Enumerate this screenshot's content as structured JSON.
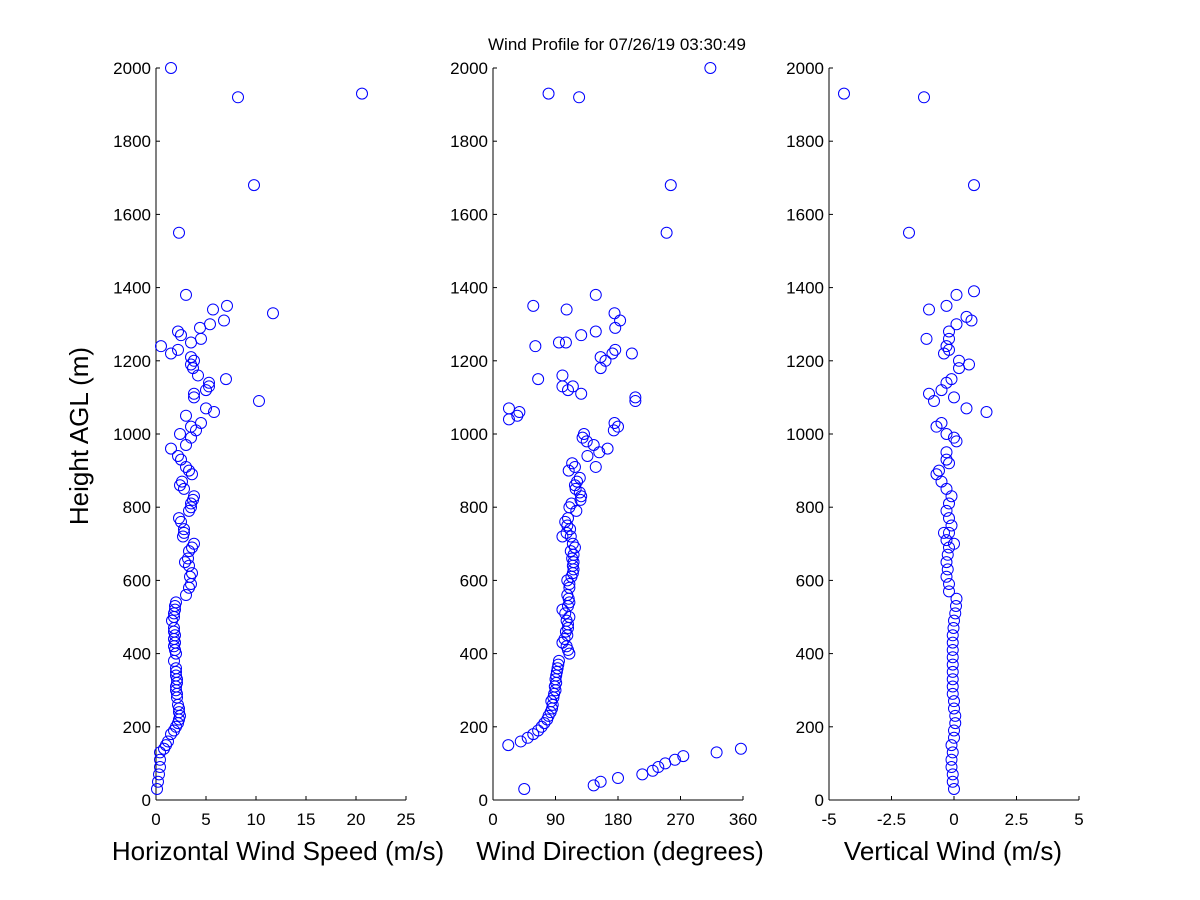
{
  "title": "Wind Profile for  07/26/19 03:30:49",
  "ylabel": "Height AGL (m)",
  "marker_color": "#0000ff",
  "chart_data": [
    {
      "type": "scatter",
      "xlabel": "Horizontal Wind Speed (m/s)",
      "xlim": [
        0,
        25
      ],
      "ylim": [
        0,
        2000
      ],
      "xticks": [
        0,
        5,
        10,
        15,
        20,
        25
      ],
      "xtick_labels": [
        "0",
        "5",
        "10",
        "15",
        "20",
        "25"
      ],
      "yticks": [
        0,
        200,
        400,
        600,
        800,
        1000,
        1200,
        1400,
        1600,
        1800,
        2000
      ],
      "points": [
        [
          0.1,
          30
        ],
        [
          0.2,
          50
        ],
        [
          0.3,
          70
        ],
        [
          0.4,
          90
        ],
        [
          0.4,
          110
        ],
        [
          0.4,
          130
        ],
        [
          0.8,
          140
        ],
        [
          1.0,
          150
        ],
        [
          1.2,
          160
        ],
        [
          1.5,
          180
        ],
        [
          1.8,
          190
        ],
        [
          2.0,
          200
        ],
        [
          2.2,
          210
        ],
        [
          2.3,
          220
        ],
        [
          2.4,
          230
        ],
        [
          2.3,
          240
        ],
        [
          2.3,
          250
        ],
        [
          2.2,
          260
        ],
        [
          2.1,
          280
        ],
        [
          2.1,
          290
        ],
        [
          2.0,
          300
        ],
        [
          2.0,
          310
        ],
        [
          2.1,
          320
        ],
        [
          2.1,
          330
        ],
        [
          2.0,
          340
        ],
        [
          2.0,
          350
        ],
        [
          2.0,
          360
        ],
        [
          1.8,
          380
        ],
        [
          2.0,
          400
        ],
        [
          1.9,
          410
        ],
        [
          1.8,
          420
        ],
        [
          1.9,
          430
        ],
        [
          1.8,
          440
        ],
        [
          1.9,
          450
        ],
        [
          1.8,
          460
        ],
        [
          1.8,
          470
        ],
        [
          1.6,
          490
        ],
        [
          1.8,
          500
        ],
        [
          1.8,
          510
        ],
        [
          1.9,
          520
        ],
        [
          1.9,
          530
        ],
        [
          2.0,
          540
        ],
        [
          3.0,
          560
        ],
        [
          3.3,
          580
        ],
        [
          3.5,
          590
        ],
        [
          3.4,
          610
        ],
        [
          3.6,
          620
        ],
        [
          3.3,
          640
        ],
        [
          2.9,
          650
        ],
        [
          3.2,
          660
        ],
        [
          3.3,
          680
        ],
        [
          3.6,
          690
        ],
        [
          3.8,
          700
        ],
        [
          2.7,
          720
        ],
        [
          2.8,
          730
        ],
        [
          2.8,
          740
        ],
        [
          2.5,
          760
        ],
        [
          2.3,
          770
        ],
        [
          3.3,
          790
        ],
        [
          3.5,
          800
        ],
        [
          3.5,
          810
        ],
        [
          3.7,
          820
        ],
        [
          3.8,
          830
        ],
        [
          2.8,
          850
        ],
        [
          2.4,
          860
        ],
        [
          2.6,
          870
        ],
        [
          3.6,
          890
        ],
        [
          3.3,
          900
        ],
        [
          3.0,
          910
        ],
        [
          2.5,
          930
        ],
        [
          2.2,
          940
        ],
        [
          1.5,
          960
        ],
        [
          3.0,
          970
        ],
        [
          3.5,
          990
        ],
        [
          2.4,
          1000
        ],
        [
          4.0,
          1010
        ],
        [
          3.5,
          1020
        ],
        [
          4.5,
          1030
        ],
        [
          3.0,
          1050
        ],
        [
          5.8,
          1060
        ],
        [
          5.0,
          1070
        ],
        [
          10.3,
          1090
        ],
        [
          3.8,
          1100
        ],
        [
          3.8,
          1110
        ],
        [
          5.0,
          1120
        ],
        [
          5.3,
          1130
        ],
        [
          5.3,
          1140
        ],
        [
          7.0,
          1150
        ],
        [
          4.2,
          1160
        ],
        [
          3.7,
          1180
        ],
        [
          3.5,
          1190
        ],
        [
          3.8,
          1200
        ],
        [
          3.5,
          1210
        ],
        [
          1.5,
          1220
        ],
        [
          2.2,
          1230
        ],
        [
          0.5,
          1240
        ],
        [
          3.5,
          1250
        ],
        [
          4.5,
          1260
        ],
        [
          2.5,
          1270
        ],
        [
          2.2,
          1280
        ],
        [
          4.4,
          1290
        ],
        [
          5.4,
          1300
        ],
        [
          6.8,
          1310
        ],
        [
          11.7,
          1330
        ],
        [
          5.7,
          1340
        ],
        [
          7.1,
          1350
        ],
        [
          3.0,
          1380
        ],
        [
          2.3,
          1550
        ],
        [
          9.8,
          1680
        ],
        [
          8.2,
          1920
        ],
        [
          20.6,
          1930
        ],
        [
          1.5,
          2000
        ]
      ]
    },
    {
      "type": "scatter",
      "xlabel": "Wind Direction (degrees)",
      "xlim": [
        0,
        360
      ],
      "ylim": [
        0,
        2000
      ],
      "xticks": [
        0,
        90,
        180,
        270,
        360
      ],
      "xtick_labels": [
        "0",
        "90",
        "180",
        "270",
        "360"
      ],
      "yticks": [
        0,
        200,
        400,
        600,
        800,
        1000,
        1200,
        1400,
        1600,
        1800,
        2000
      ],
      "points": [
        [
          45,
          30
        ],
        [
          145,
          40
        ],
        [
          155,
          50
        ],
        [
          180,
          60
        ],
        [
          215,
          70
        ],
        [
          230,
          80
        ],
        [
          238,
          90
        ],
        [
          248,
          100
        ],
        [
          262,
          110
        ],
        [
          274,
          120
        ],
        [
          322,
          130
        ],
        [
          357,
          140
        ],
        [
          22,
          150
        ],
        [
          40,
          160
        ],
        [
          50,
          170
        ],
        [
          58,
          180
        ],
        [
          65,
          190
        ],
        [
          70,
          200
        ],
        [
          74,
          210
        ],
        [
          78,
          220
        ],
        [
          80,
          230
        ],
        [
          83,
          240
        ],
        [
          85,
          250
        ],
        [
          86,
          260
        ],
        [
          84,
          270
        ],
        [
          87,
          280
        ],
        [
          88,
          290
        ],
        [
          90,
          300
        ],
        [
          89,
          310
        ],
        [
          91,
          320
        ],
        [
          90,
          330
        ],
        [
          91,
          340
        ],
        [
          92,
          350
        ],
        [
          93,
          360
        ],
        [
          94,
          370
        ],
        [
          95,
          380
        ],
        [
          110,
          400
        ],
        [
          108,
          410
        ],
        [
          106,
          420
        ],
        [
          100,
          430
        ],
        [
          103,
          440
        ],
        [
          107,
          450
        ],
        [
          105,
          460
        ],
        [
          108,
          470
        ],
        [
          108,
          480
        ],
        [
          106,
          490
        ],
        [
          110,
          500
        ],
        [
          104,
          510
        ],
        [
          100,
          520
        ],
        [
          108,
          530
        ],
        [
          110,
          540
        ],
        [
          109,
          550
        ],
        [
          107,
          560
        ],
        [
          110,
          580
        ],
        [
          110,
          590
        ],
        [
          107,
          600
        ],
        [
          113,
          610
        ],
        [
          115,
          620
        ],
        [
          116,
          630
        ],
        [
          115,
          640
        ],
        [
          116,
          650
        ],
        [
          114,
          660
        ],
        [
          116,
          670
        ],
        [
          112,
          680
        ],
        [
          118,
          690
        ],
        [
          115,
          700
        ],
        [
          112,
          720
        ],
        [
          100,
          720
        ],
        [
          106,
          730
        ],
        [
          111,
          740
        ],
        [
          107,
          750
        ],
        [
          104,
          760
        ],
        [
          108,
          770
        ],
        [
          120,
          790
        ],
        [
          110,
          800
        ],
        [
          113,
          810
        ],
        [
          126,
          820
        ],
        [
          127,
          830
        ],
        [
          125,
          840
        ],
        [
          119,
          850
        ],
        [
          118,
          860
        ],
        [
          121,
          870
        ],
        [
          125,
          880
        ],
        [
          109,
          900
        ],
        [
          118,
          910
        ],
        [
          148,
          910
        ],
        [
          114,
          920
        ],
        [
          136,
          940
        ],
        [
          153,
          950
        ],
        [
          165,
          960
        ],
        [
          145,
          970
        ],
        [
          135,
          980
        ],
        [
          129,
          990
        ],
        [
          131,
          1000
        ],
        [
          174,
          1010
        ],
        [
          180,
          1020
        ],
        [
          175,
          1030
        ],
        [
          23,
          1040
        ],
        [
          35,
          1050
        ],
        [
          38,
          1060
        ],
        [
          23,
          1070
        ],
        [
          205,
          1090
        ],
        [
          205,
          1100
        ],
        [
          127,
          1110
        ],
        [
          108,
          1120
        ],
        [
          115,
          1130
        ],
        [
          100,
          1130
        ],
        [
          65,
          1150
        ],
        [
          100,
          1160
        ],
        [
          155,
          1180
        ],
        [
          162,
          1200
        ],
        [
          155,
          1210
        ],
        [
          172,
          1220
        ],
        [
          200,
          1220
        ],
        [
          176,
          1230
        ],
        [
          61,
          1240
        ],
        [
          95,
          1250
        ],
        [
          105,
          1250
        ],
        [
          127,
          1270
        ],
        [
          148,
          1280
        ],
        [
          176,
          1290
        ],
        [
          183,
          1310
        ],
        [
          175,
          1330
        ],
        [
          58,
          1350
        ],
        [
          106,
          1340
        ],
        [
          148,
          1380
        ],
        [
          250,
          1550
        ],
        [
          256,
          1680
        ],
        [
          124,
          1920
        ],
        [
          80,
          1930
        ],
        [
          313,
          2000
        ]
      ]
    },
    {
      "type": "scatter",
      "xlabel": "Vertical Wind (m/s)",
      "xlim": [
        -5,
        5
      ],
      "ylim": [
        0,
        2000
      ],
      "xticks": [
        -5,
        -2.5,
        0,
        2.5,
        5
      ],
      "xtick_labels": [
        "-5",
        "-2.5",
        "0",
        "2.5",
        "5"
      ],
      "yticks": [
        0,
        200,
        400,
        600,
        800,
        1000,
        1200,
        1400,
        1600,
        1800,
        2000
      ],
      "points": [
        [
          0.0,
          30
        ],
        [
          -0.05,
          50
        ],
        [
          -0.05,
          70
        ],
        [
          -0.1,
          90
        ],
        [
          -0.1,
          110
        ],
        [
          -0.05,
          130
        ],
        [
          -0.1,
          150
        ],
        [
          0.0,
          170
        ],
        [
          0.0,
          190
        ],
        [
          0.05,
          210
        ],
        [
          0.05,
          230
        ],
        [
          0.0,
          250
        ],
        [
          0.0,
          270
        ],
        [
          -0.05,
          290
        ],
        [
          -0.05,
          310
        ],
        [
          -0.05,
          330
        ],
        [
          -0.05,
          350
        ],
        [
          -0.05,
          370
        ],
        [
          -0.05,
          390
        ],
        [
          -0.05,
          410
        ],
        [
          -0.05,
          430
        ],
        [
          -0.05,
          450
        ],
        [
          -0.02,
          470
        ],
        [
          0.0,
          490
        ],
        [
          0.05,
          510
        ],
        [
          0.08,
          530
        ],
        [
          0.1,
          550
        ],
        [
          -0.2,
          570
        ],
        [
          -0.2,
          590
        ],
        [
          -0.3,
          610
        ],
        [
          -0.25,
          630
        ],
        [
          -0.3,
          650
        ],
        [
          -0.25,
          670
        ],
        [
          -0.2,
          690
        ],
        [
          0.0,
          700
        ],
        [
          -0.3,
          710
        ],
        [
          -0.2,
          730
        ],
        [
          -0.4,
          730
        ],
        [
          -0.1,
          750
        ],
        [
          -0.2,
          770
        ],
        [
          -0.3,
          790
        ],
        [
          -0.2,
          810
        ],
        [
          -0.1,
          830
        ],
        [
          -0.3,
          850
        ],
        [
          -0.5,
          870
        ],
        [
          -0.7,
          890
        ],
        [
          -0.6,
          900
        ],
        [
          -0.2,
          920
        ],
        [
          -0.3,
          930
        ],
        [
          -0.3,
          950
        ],
        [
          0.1,
          980
        ],
        [
          0.0,
          990
        ],
        [
          -0.3,
          1000
        ],
        [
          -0.7,
          1020
        ],
        [
          -0.5,
          1030
        ],
        [
          0.5,
          1070
        ],
        [
          1.3,
          1060
        ],
        [
          -0.8,
          1090
        ],
        [
          -1.0,
          1110
        ],
        [
          0.0,
          1100
        ],
        [
          -0.5,
          1120
        ],
        [
          -0.3,
          1140
        ],
        [
          -0.1,
          1150
        ],
        [
          0.2,
          1180
        ],
        [
          0.2,
          1200
        ],
        [
          0.6,
          1190
        ],
        [
          -0.4,
          1220
        ],
        [
          -0.2,
          1230
        ],
        [
          -0.3,
          1240
        ],
        [
          -0.2,
          1260
        ],
        [
          -1.1,
          1260
        ],
        [
          -0.2,
          1280
        ],
        [
          0.1,
          1300
        ],
        [
          0.7,
          1310
        ],
        [
          0.5,
          1320
        ],
        [
          -1.0,
          1340
        ],
        [
          -0.3,
          1350
        ],
        [
          0.1,
          1380
        ],
        [
          0.8,
          1390
        ],
        [
          -1.8,
          1550
        ],
        [
          0.8,
          1680
        ],
        [
          -1.2,
          1920
        ],
        [
          -4.4,
          1930
        ]
      ]
    }
  ]
}
